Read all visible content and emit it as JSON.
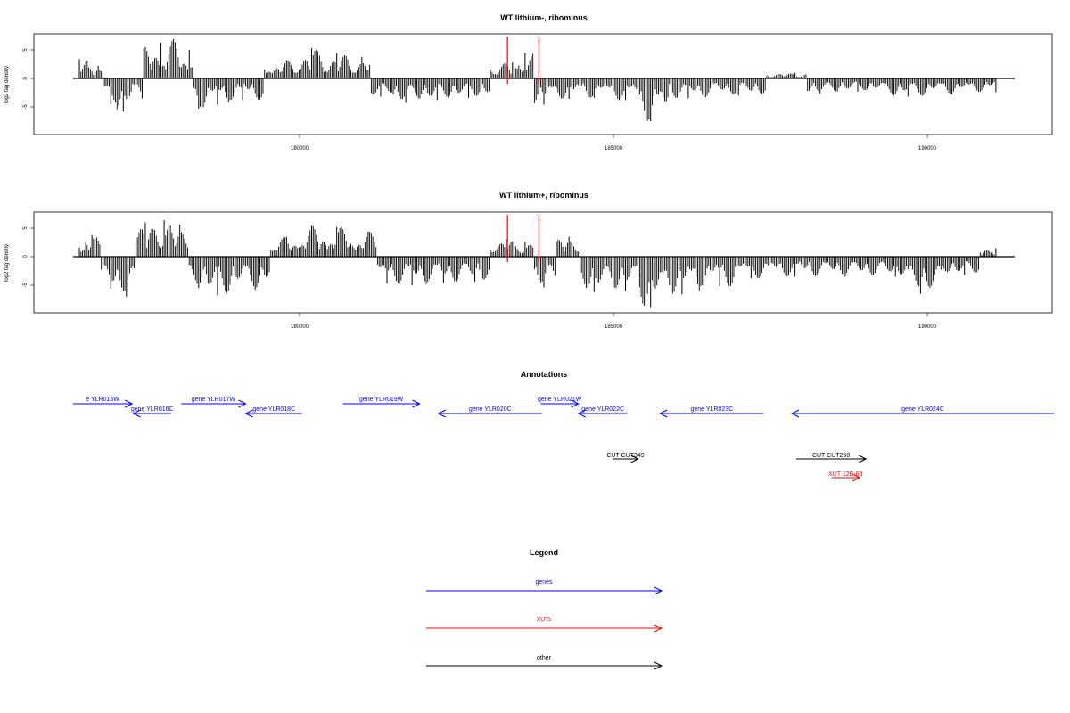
{
  "chart_data": [
    {
      "type": "bar",
      "title": "WT lithium-, ribominus",
      "ylabel": "log2 tag density",
      "xlabel": "",
      "x_ticks": [
        180000,
        185000,
        190000
      ],
      "y_ticks": [
        -5,
        0,
        5
      ],
      "xlim": [
        176700,
        191700
      ],
      "ylim": [
        -9,
        7
      ],
      "grid": false,
      "series": [
        {
          "values": [
            [
              176800,
              3.4
            ],
            [
              177100,
              2.2
            ],
            [
              177300,
              -4.5
            ],
            [
              177500,
              -5.8
            ],
            [
              177800,
              -3.5
            ],
            [
              177850,
              5.5
            ],
            [
              178100,
              6.3
            ],
            [
              178300,
              6.9
            ],
            [
              178550,
              5.0
            ],
            [
              178700,
              -5.3
            ],
            [
              179000,
              -4.6
            ],
            [
              179400,
              -3.8
            ],
            [
              180100,
              3.2
            ],
            [
              180500,
              5.3
            ],
            [
              180900,
              4.4
            ],
            [
              181300,
              3.8
            ],
            [
              181600,
              -3.2
            ],
            [
              182000,
              -4.3
            ],
            [
              182500,
              -3.8
            ],
            [
              183000,
              -3.4
            ],
            [
              183700,
              2.8
            ],
            [
              183900,
              4.5
            ],
            [
              184200,
              -4.6
            ],
            [
              184600,
              -3.6
            ],
            [
              185000,
              -3.4
            ],
            [
              185500,
              -3.8
            ],
            [
              185900,
              -7.5
            ],
            [
              186500,
              -3.5
            ],
            [
              187300,
              -3.0
            ],
            [
              188200,
              1.0
            ],
            [
              188600,
              -2.7
            ],
            [
              189200,
              -2.3
            ],
            [
              190000,
              -3.2
            ],
            [
              190700,
              -2.8
            ],
            [
              191400,
              -2.4
            ]
          ]
        },
        {
          "marks": [
            183620,
            184120
          ],
          "values": [
            7.0,
            7.0
          ],
          "color": "#ff0000"
        }
      ]
    },
    {
      "type": "bar",
      "title": "WT lithium+, ribominus",
      "ylabel": "log2 tag density",
      "xlabel": "",
      "x_ticks": [
        180000,
        185000,
        190000
      ],
      "y_ticks": [
        -5,
        0,
        5
      ],
      "xlim": [
        176700,
        191700
      ],
      "ylim": [
        -9,
        7
      ],
      "grid": false,
      "series": [
        {
          "values": [
            [
              176800,
              1.6
            ],
            [
              177000,
              3.8
            ],
            [
              177300,
              -5.6
            ],
            [
              177550,
              -7.0
            ],
            [
              177850,
              6.0
            ],
            [
              178150,
              6.4
            ],
            [
              178400,
              5.6
            ],
            [
              178700,
              -5.5
            ],
            [
              179000,
              -6.8
            ],
            [
              179600,
              -5.8
            ],
            [
              180100,
              3.5
            ],
            [
              180500,
              5.4
            ],
            [
              180900,
              5.2
            ],
            [
              181400,
              4.4
            ],
            [
              181700,
              -4.7
            ],
            [
              182100,
              -5.0
            ],
            [
              182600,
              -4.6
            ],
            [
              183100,
              -4.4
            ],
            [
              183600,
              3.1
            ],
            [
              183900,
              2.6
            ],
            [
              184200,
              -5.4
            ],
            [
              184600,
              3.5
            ],
            [
              185000,
              -6.2
            ],
            [
              185500,
              -6.0
            ],
            [
              185900,
              -9.0
            ],
            [
              186400,
              -6.6
            ],
            [
              187000,
              -5.2
            ],
            [
              187500,
              -3.8
            ],
            [
              188200,
              -3.5
            ],
            [
              189000,
              -3.5
            ],
            [
              189800,
              -3.5
            ],
            [
              190200,
              -6.5
            ],
            [
              190900,
              -3.2
            ],
            [
              191400,
              1.5
            ]
          ]
        },
        {
          "marks": [
            183620,
            184120
          ],
          "values": [
            7.0,
            7.0
          ],
          "color": "#ff0000"
        }
      ]
    }
  ],
  "annotations": {
    "title": "Annotations",
    "features": [
      {
        "label": "e YLR015W",
        "start": 176700,
        "end": 177640,
        "strand": "+",
        "kind": "gene",
        "row": 0
      },
      {
        "label": "gene YLR016C",
        "start": 177660,
        "end": 178260,
        "strand": "-",
        "kind": "gene",
        "row": 1
      },
      {
        "label": "gene YLR017W",
        "start": 178420,
        "end": 179450,
        "strand": "+",
        "kind": "gene",
        "row": 0
      },
      {
        "label": "gene YLR018C",
        "start": 179450,
        "end": 180350,
        "strand": "-",
        "kind": "gene",
        "row": 1
      },
      {
        "label": "gene YLR019W",
        "start": 181000,
        "end": 182220,
        "strand": "+",
        "kind": "gene",
        "row": 0
      },
      {
        "label": "gene YLR020C",
        "start": 182520,
        "end": 184170,
        "strand": "-",
        "kind": "gene",
        "row": 1
      },
      {
        "label": "gene YLR021W",
        "start": 184150,
        "end": 184750,
        "strand": "+",
        "kind": "gene",
        "row": 0
      },
      {
        "label": "gene YLR022C",
        "start": 184750,
        "end": 185530,
        "strand": "-",
        "kind": "gene",
        "row": 1
      },
      {
        "label": "gene YLR023C",
        "start": 186050,
        "end": 187700,
        "strand": "-",
        "kind": "gene",
        "row": 1
      },
      {
        "label": "gene YLR024C",
        "start": 188150,
        "end": 192600,
        "strand": "-",
        "kind": "gene",
        "row": 1
      },
      {
        "label": "CUT CUT349",
        "start": 185300,
        "end": 185700,
        "strand": "+",
        "kind": "other",
        "row": 2
      },
      {
        "label": "CUT CUT250",
        "start": 188220,
        "end": 189330,
        "strand": "+",
        "kind": "other",
        "row": 2
      },
      {
        "label": "XUT 12E-68",
        "start": 188780,
        "end": 189230,
        "strand": "+",
        "kind": "xut",
        "row": 3
      }
    ]
  },
  "legend": {
    "title": "Legend",
    "items": [
      {
        "label": "genes",
        "color": "#0000ff"
      },
      {
        "label": "XUTs",
        "color": "#ff0000"
      },
      {
        "label": "other",
        "color": "#000000"
      }
    ]
  },
  "colors": {
    "gene": "#0000ff",
    "xut": "#ff0000",
    "other": "#000000",
    "bars": "#000000"
  }
}
